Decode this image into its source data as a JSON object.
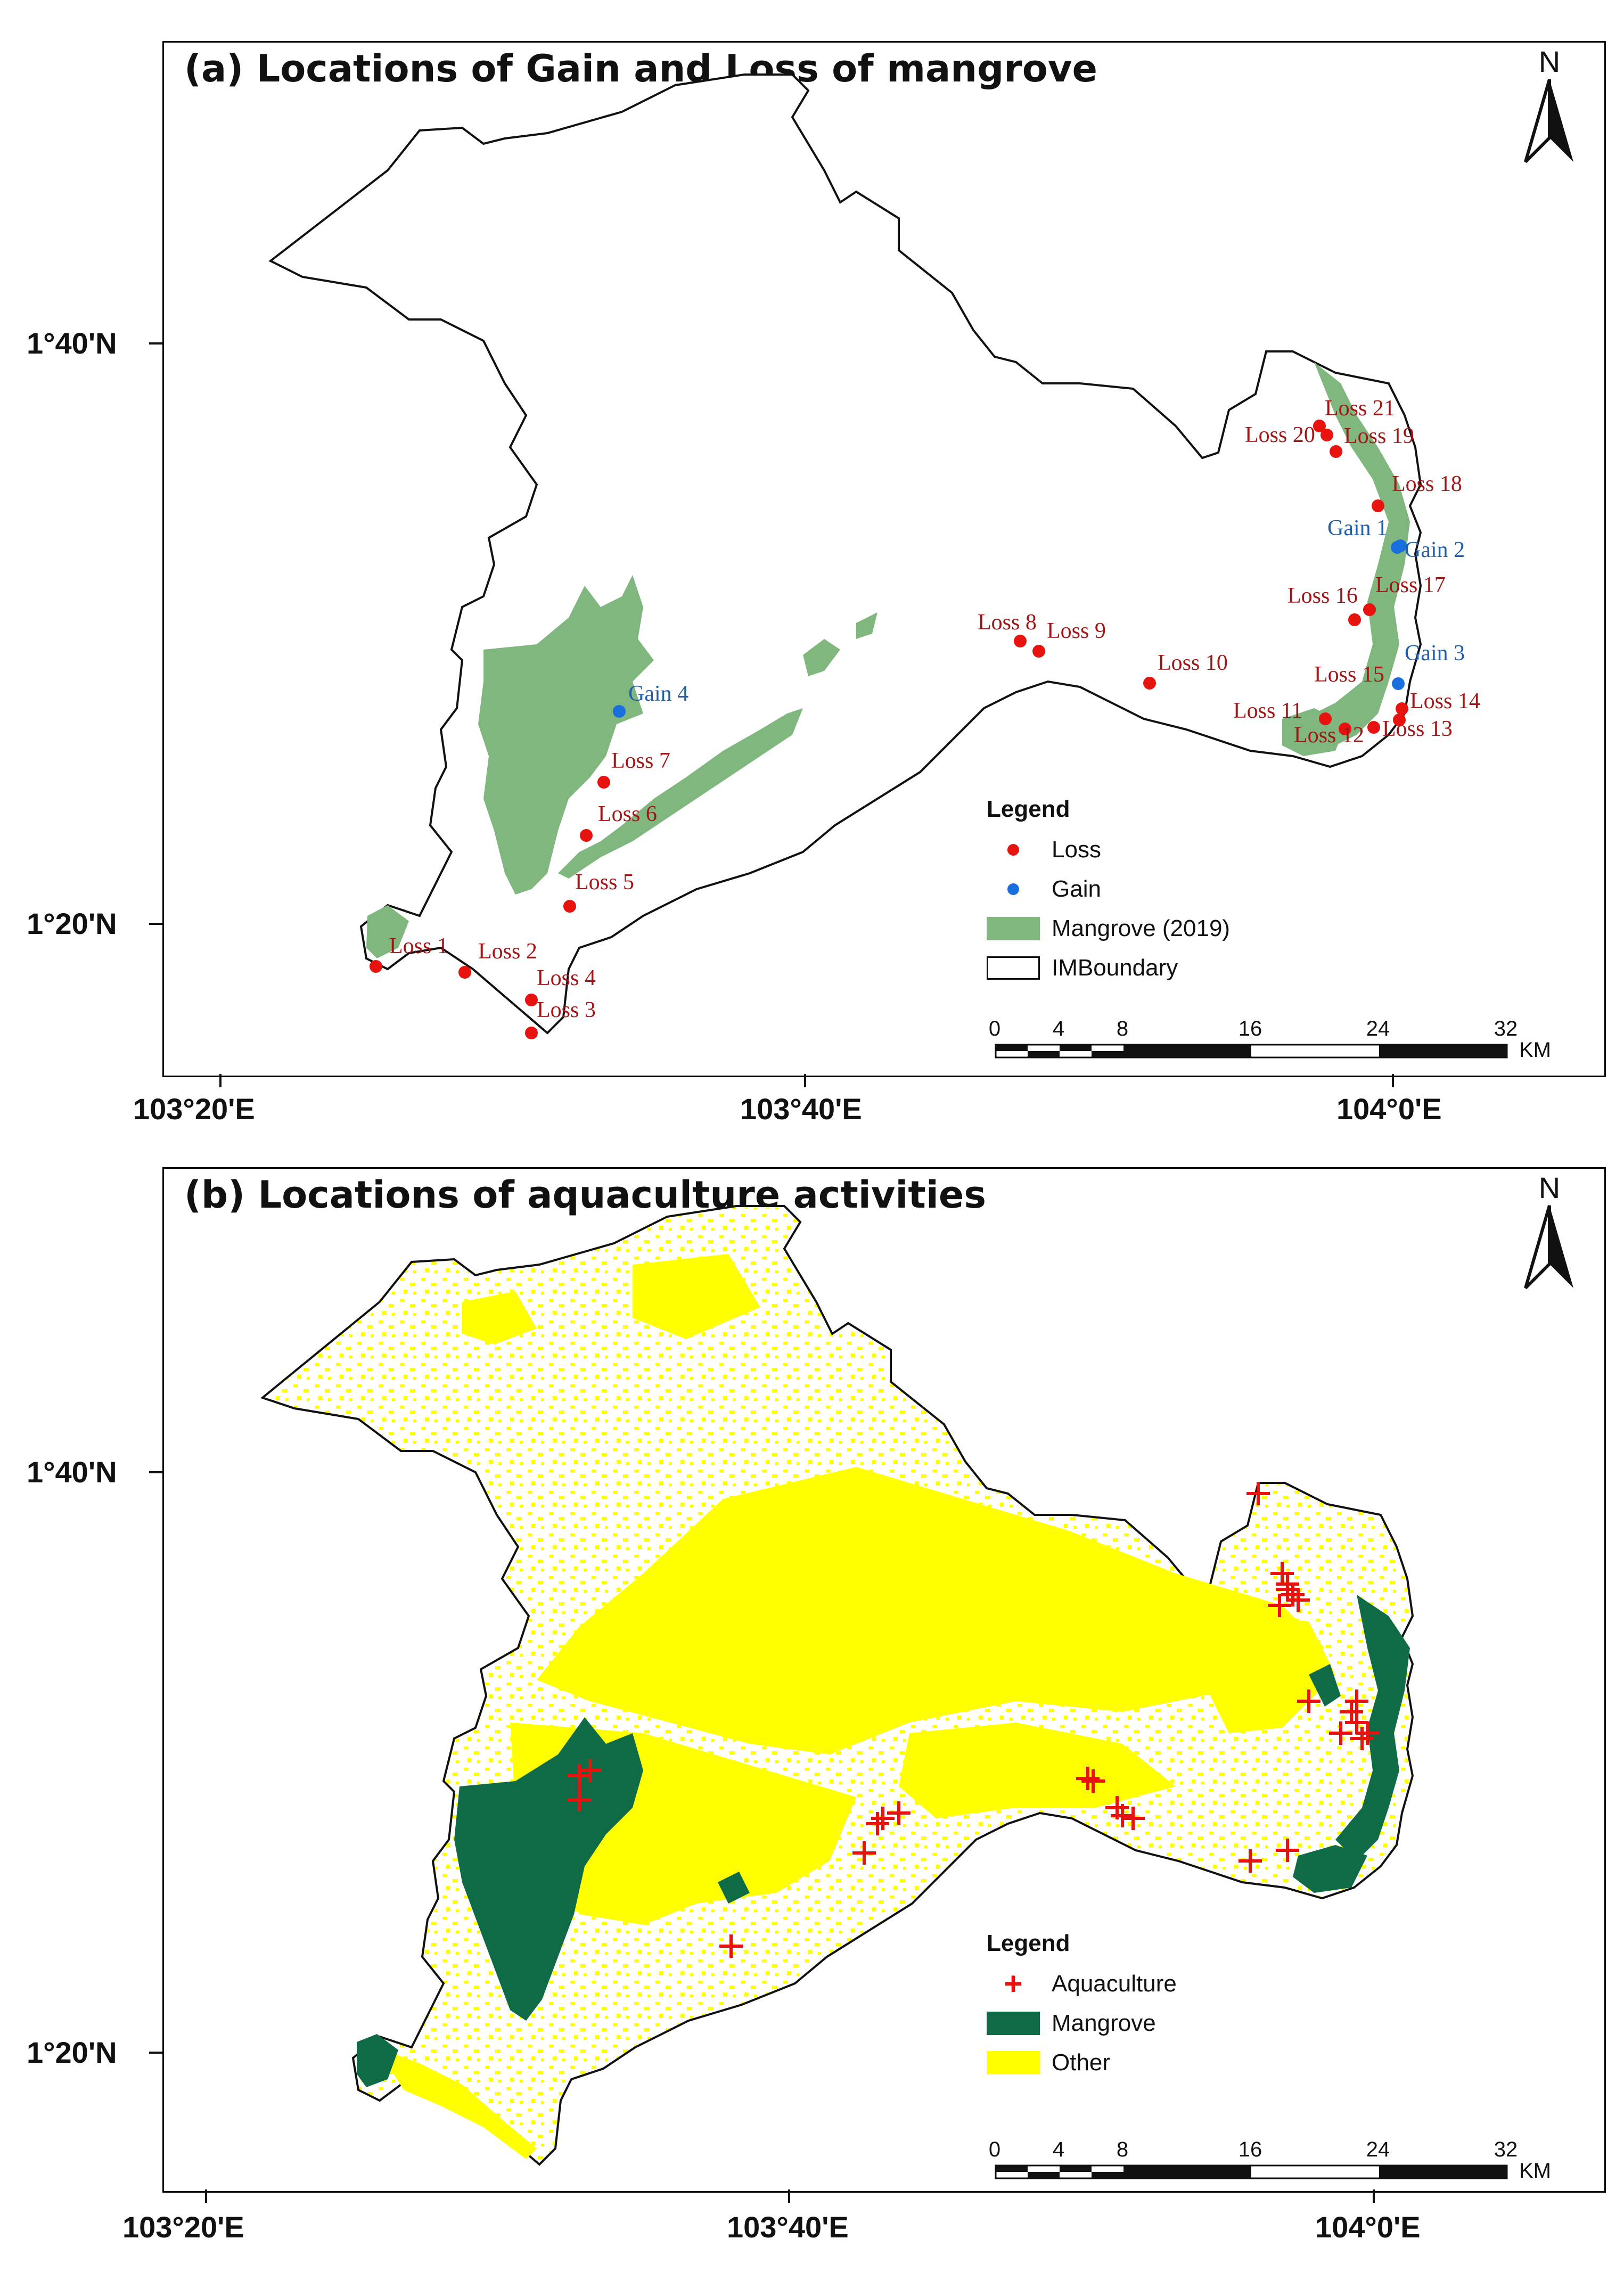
{
  "panel_a": {
    "title": "(a) Locations of Gain and Loss of mangrove",
    "north": "N",
    "legend": {
      "title": "Legend",
      "items": [
        {
          "label": "Loss",
          "color": "#e8120e",
          "symbol": "dot"
        },
        {
          "label": "Gain",
          "color": "#1a6fe0",
          "symbol": "dot"
        },
        {
          "label": "Mangrove (2019)",
          "color": "#7fb77e",
          "symbol": "swatch"
        },
        {
          "label": "IMBoundary",
          "color": "#ffffff",
          "symbol": "outline"
        }
      ]
    },
    "scale": {
      "ticks": [
        "0",
        "4",
        "8",
        "16",
        "24",
        "32"
      ],
      "unit": "KM"
    },
    "lat_labels": [
      "1°40'N",
      "1°20'N"
    ],
    "lon_labels": [
      "103°20'E",
      "103°40'E",
      "104°0'E"
    ],
    "loss_labels": [
      "Loss 1",
      "Loss 2",
      "Loss 3",
      "Loss 4",
      "Loss 5",
      "Loss 6",
      "Loss 7",
      "Loss 8",
      "Loss 9",
      "Loss 10",
      "Loss 11",
      "Loss 12",
      "Loss 13",
      "Loss 14",
      "Loss 15",
      "Loss 16",
      "Loss 17",
      "Loss 18",
      "Loss 19",
      "Loss 20",
      "Loss 21"
    ],
    "gain_labels": [
      "Gain 1",
      "Gain 2",
      "Gain 3",
      "Gain 4"
    ]
  },
  "panel_b": {
    "title": "(b) Locations of aquaculture activities",
    "north": "N",
    "legend": {
      "title": "Legend",
      "items": [
        {
          "label": "Aquaculture",
          "color": "#e8120e",
          "symbol": "cross"
        },
        {
          "label": "Mangrove",
          "color": "#0e6b46",
          "symbol": "swatch"
        },
        {
          "label": "Other",
          "color": "#ffff00",
          "symbol": "swatch"
        }
      ]
    },
    "scale": {
      "ticks": [
        "0",
        "4",
        "8",
        "16",
        "24",
        "32"
      ],
      "unit": "KM"
    },
    "lat_labels": [
      "1°40'N",
      "1°20'N"
    ],
    "lon_labels": [
      "103°20'E",
      "103°40'E",
      "104°0'E"
    ]
  },
  "colors": {
    "loss": "#e8120e",
    "gain": "#1a6fe0",
    "mangrove_a": "#7fb77e",
    "mangrove_b": "#0e6b46",
    "other": "#ffff00",
    "aquaculture": "#e8120e",
    "label_loss": "#a31414",
    "label_gain": "#1f5fae"
  }
}
